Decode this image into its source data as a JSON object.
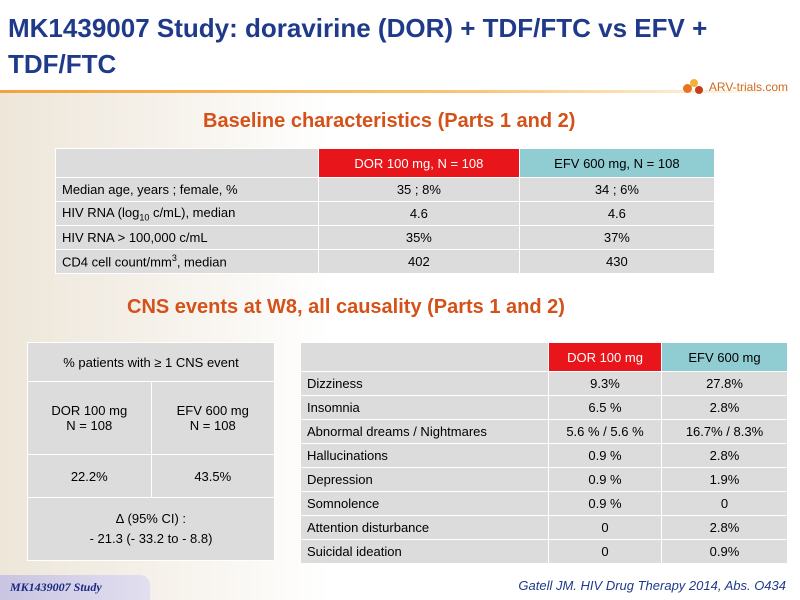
{
  "title": "MK1439007 Study: doravirine (DOR) + TDF/FTC vs EFV + TDF/FTC",
  "logo_text": "ARV-trials.com",
  "baseline": {
    "section_title": "Baseline characteristics (Parts 1 and 2)",
    "columns": [
      "DOR 100 mg, N = 108",
      "EFV 600 mg, N = 108"
    ],
    "rows": [
      {
        "label": "Median age, years ; female, %",
        "dor": "35 ; 8%",
        "efv": "34 ; 6%"
      },
      {
        "label_pre": "HIV RNA (log",
        "label_sub": "10",
        "label_post": " c/mL), median",
        "dor": "4.6",
        "efv": "4.6"
      },
      {
        "label": "HIV RNA > 100,000 c/mL",
        "dor": "35%",
        "efv": "37%"
      },
      {
        "label_pre": "CD4 cell count/mm",
        "label_sup": "3",
        "label_post": ", median",
        "dor": "402",
        "efv": "430"
      }
    ]
  },
  "cns": {
    "section_title": "CNS events at W8, all causality (Parts 1 and 2)",
    "summary": {
      "header": "% patients with ≥ 1 CNS event",
      "dor_label_line1": "DOR 100 mg",
      "dor_label_line2": "N = 108",
      "efv_label_line1": "EFV 600 mg",
      "efv_label_line2": "N = 108",
      "dor_value": "22.2%",
      "efv_value": "43.5%",
      "delta_line1": "∆ (95% CI) :",
      "delta_line2": "- 21.3 (- 33.2 to - 8.8)"
    },
    "events": {
      "columns": [
        "DOR 100 mg",
        "EFV 600 mg"
      ],
      "rows": [
        {
          "label": "Dizziness",
          "dor": "9.3%",
          "efv": "27.8%"
        },
        {
          "label": "Insomnia",
          "dor": "6.5 %",
          "efv": "2.8%"
        },
        {
          "label": "Abnormal dreams / Nightmares",
          "dor": "5.6 % / 5.6 %",
          "efv": "16.7% / 8.3%"
        },
        {
          "label": "Hallucinations",
          "dor": "0.9 %",
          "efv": "2.8%"
        },
        {
          "label": "Depression",
          "dor": "0.9 %",
          "efv": "1.9%"
        },
        {
          "label": "Somnolence",
          "dor": "0.9 %",
          "efv": "0"
        },
        {
          "label": "Attention disturbance",
          "dor": "0",
          "efv": "2.8%"
        },
        {
          "label": "Suicidal ideation",
          "dor": "0",
          "efv": "0.9%"
        }
      ]
    }
  },
  "footer": {
    "badge": "MK1439007 Study",
    "reference": "Gatell JM.  HIV Drug Therapy 2014, Abs. O434"
  },
  "colors": {
    "title": "#1f3a8a",
    "section_title": "#d4521a",
    "dor_header": "#e8151b",
    "efv_header": "#8fcdd2",
    "cell": "#dcdcdc"
  }
}
